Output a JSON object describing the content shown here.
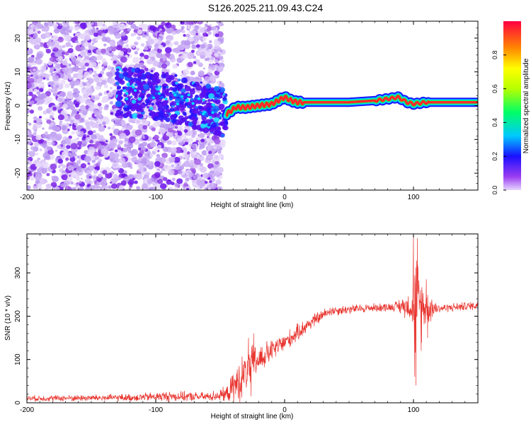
{
  "title": "S126.2025.211.09.43.C24",
  "colors": {
    "trace": "#e8322c",
    "axes": "#000000"
  },
  "chart_data": [
    {
      "type": "heatmap",
      "name": "spectrogram",
      "xlabel": "Height of straight line (km)",
      "ylabel": "Frequency (Hz)",
      "xlim": [
        -200,
        150
      ],
      "ylim": [
        -25,
        25
      ],
      "x_ticks": [
        "-200",
        "-100",
        "0",
        "100"
      ],
      "x_tick_values": [
        -200,
        -100,
        0,
        100
      ],
      "y_ticks": [
        "-20",
        "-10",
        "0",
        "10",
        "20"
      ],
      "y_tick_values": [
        -20,
        -10,
        0,
        10,
        20
      ],
      "colorbar": {
        "label": "Normalized spectral amplitude",
        "range": [
          0,
          1
        ],
        "ticks": [
          "0.0",
          "0.2",
          "0.4",
          "0.6",
          "0.8"
        ],
        "tick_values": [
          0,
          0.2,
          0.4,
          0.6,
          0.8
        ],
        "colormap": "rainbow"
      },
      "noise_region_x": [
        -200,
        -48
      ],
      "dense_noise_x": [
        -130,
        -45
      ],
      "carrier_track": [
        {
          "x": -125,
          "f": 4
        },
        {
          "x": -110,
          "f": 3.5
        },
        {
          "x": -95,
          "f": 3
        },
        {
          "x": -80,
          "f": 1.5
        },
        {
          "x": -65,
          "f": 0
        },
        {
          "x": -55,
          "f": -1.5
        },
        {
          "x": -45,
          "f": -2.5
        },
        {
          "x": -38,
          "f": -0.5
        },
        {
          "x": -30,
          "f": -0.5
        },
        {
          "x": -20,
          "f": 0
        },
        {
          "x": -10,
          "f": 0.5
        },
        {
          "x": -5,
          "f": 1.5
        },
        {
          "x": 0,
          "f": 2.5
        },
        {
          "x": 5,
          "f": 1.5
        },
        {
          "x": 10,
          "f": 1
        },
        {
          "x": 50,
          "f": 1
        },
        {
          "x": 70,
          "f": 1.5
        },
        {
          "x": 80,
          "f": 2
        },
        {
          "x": 88,
          "f": 2.5
        },
        {
          "x": 95,
          "f": 1
        },
        {
          "x": 100,
          "f": 0.5
        },
        {
          "x": 110,
          "f": 1
        },
        {
          "x": 150,
          "f": 1
        }
      ]
    },
    {
      "type": "line",
      "name": "snr",
      "xlabel": "Height of straight line (km)",
      "ylabel": "SNR (10 * v/v)",
      "xlim": [
        -200,
        150
      ],
      "ylim": [
        0,
        390
      ],
      "x_ticks": [
        "-200",
        "-100",
        "0",
        "100"
      ],
      "x_tick_values": [
        -200,
        -100,
        0,
        100
      ],
      "y_ticks": [
        "0",
        "100",
        "200",
        "300"
      ],
      "y_tick_values": [
        0,
        100,
        200,
        300
      ],
      "series": [
        {
          "color": "#e8322c",
          "envelope": [
            {
              "x": -200,
              "y": 10,
              "noise": 8
            },
            {
              "x": -120,
              "y": 12,
              "noise": 10
            },
            {
              "x": -90,
              "y": 15,
              "noise": 14
            },
            {
              "x": -60,
              "y": 14,
              "noise": 12
            },
            {
              "x": -45,
              "y": 20,
              "noise": 20
            },
            {
              "x": -35,
              "y": 50,
              "noise": 60
            },
            {
              "x": -25,
              "y": 90,
              "noise": 50
            },
            {
              "x": -10,
              "y": 120,
              "noise": 30
            },
            {
              "x": 5,
              "y": 150,
              "noise": 25
            },
            {
              "x": 20,
              "y": 185,
              "noise": 20
            },
            {
              "x": 35,
              "y": 212,
              "noise": 14
            },
            {
              "x": 60,
              "y": 218,
              "noise": 12
            },
            {
              "x": 85,
              "y": 222,
              "noise": 12
            },
            {
              "x": 98,
              "y": 225,
              "noise": 40
            },
            {
              "x": 102,
              "y": 220,
              "noise": 160
            },
            {
              "x": 108,
              "y": 222,
              "noise": 60
            },
            {
              "x": 120,
              "y": 218,
              "noise": 12
            },
            {
              "x": 150,
              "y": 225,
              "noise": 12
            }
          ],
          "spikes": [
            {
              "x": -28,
              "y": 150
            },
            {
              "x": -26,
              "y": 15
            },
            {
              "x": -24,
              "y": 160
            },
            {
              "x": 100,
              "y": 385
            },
            {
              "x": 101,
              "y": 60
            },
            {
              "x": 102,
              "y": 40
            },
            {
              "x": 103,
              "y": 380
            },
            {
              "x": 106,
              "y": 120
            },
            {
              "x": 110,
              "y": 285
            },
            {
              "x": 111,
              "y": 150
            }
          ]
        }
      ]
    }
  ]
}
